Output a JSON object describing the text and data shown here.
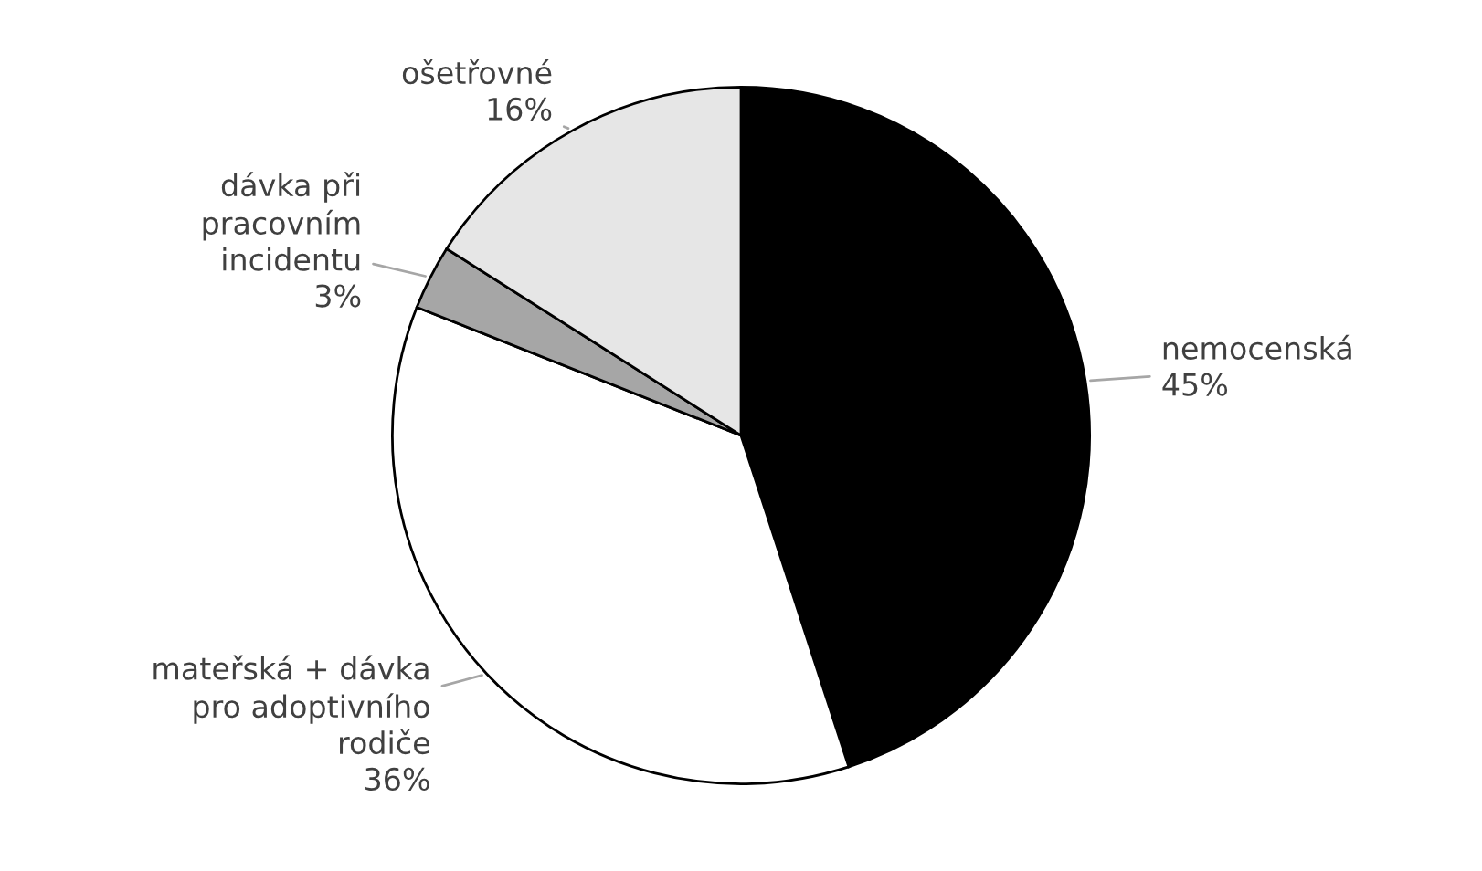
{
  "chart_data": {
    "type": "pie",
    "categories": [
      "nemocenská",
      "mateřská + dávka\npro adoptivního\nrodiče",
      "dávka při\npracovním\nincidentu",
      "ošetřovné"
    ],
    "values": [
      45,
      36,
      3,
      16
    ],
    "value_labels": [
      "45%",
      "36%",
      "3%",
      "16%"
    ],
    "colors": [
      "#000000",
      "#ffffff",
      "#a6a6a6",
      "#e6e6e6"
    ],
    "legend": false
  }
}
